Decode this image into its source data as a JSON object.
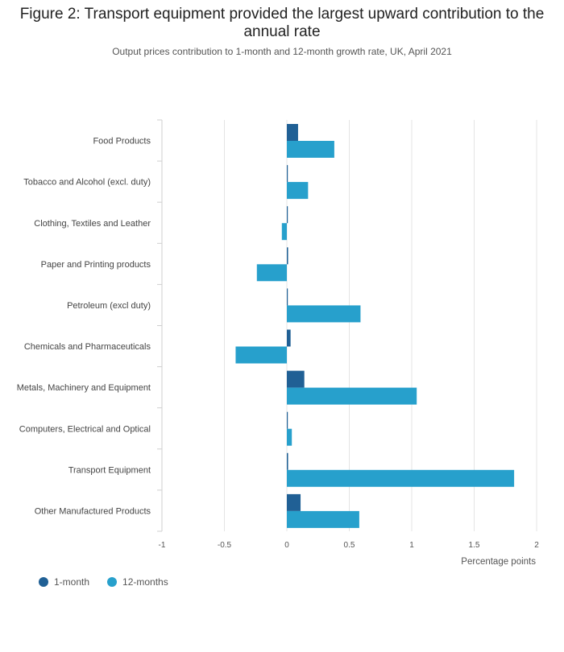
{
  "header": {
    "title": "Figure 2: Transport equipment provided the largest upward contribution to the annual rate",
    "subtitle": "Output prices contribution to 1-month and 12-month growth rate, UK, April 2021"
  },
  "colors": {
    "one_month": "#206095",
    "twelve_months": "#27a0cc",
    "grid": "#e4e4e4",
    "axis": "#cfcfcf"
  },
  "chart_data": {
    "type": "bar",
    "orientation": "horizontal",
    "title": "Figure 2: Transport equipment provided the largest upward contribution to the annual rate",
    "subtitle": "Output prices contribution to 1-month and 12-month growth rate, UK, April 2021",
    "xlabel": "Percentage points",
    "ylabel": "",
    "xlim": [
      -1,
      2
    ],
    "xticks": [
      -1,
      -0.5,
      0,
      0.5,
      1,
      1.5,
      2
    ],
    "grid": true,
    "legend_position": "bottom-left",
    "categories": [
      "Food Products",
      "Tobacco and Alcohol (excl. duty)",
      "Clothing, Textiles and Leather",
      "Paper and Printing products",
      "Petroleum (excl duty)",
      "Chemicals and Pharmaceuticals",
      "Metals, Machinery and Equipment",
      "Computers, Electrical and Optical",
      "Transport Equipment",
      "Other Manufactured Products"
    ],
    "series": [
      {
        "name": "1-month",
        "color": "#206095",
        "values": [
          0.09,
          0.0,
          0.0,
          0.01,
          0.0,
          0.03,
          0.14,
          0.0,
          0.01,
          0.11
        ]
      },
      {
        "name": "12-months",
        "color": "#27a0cc",
        "values": [
          0.38,
          0.17,
          -0.04,
          -0.24,
          0.59,
          -0.41,
          1.04,
          0.04,
          1.82,
          0.58
        ]
      }
    ]
  }
}
